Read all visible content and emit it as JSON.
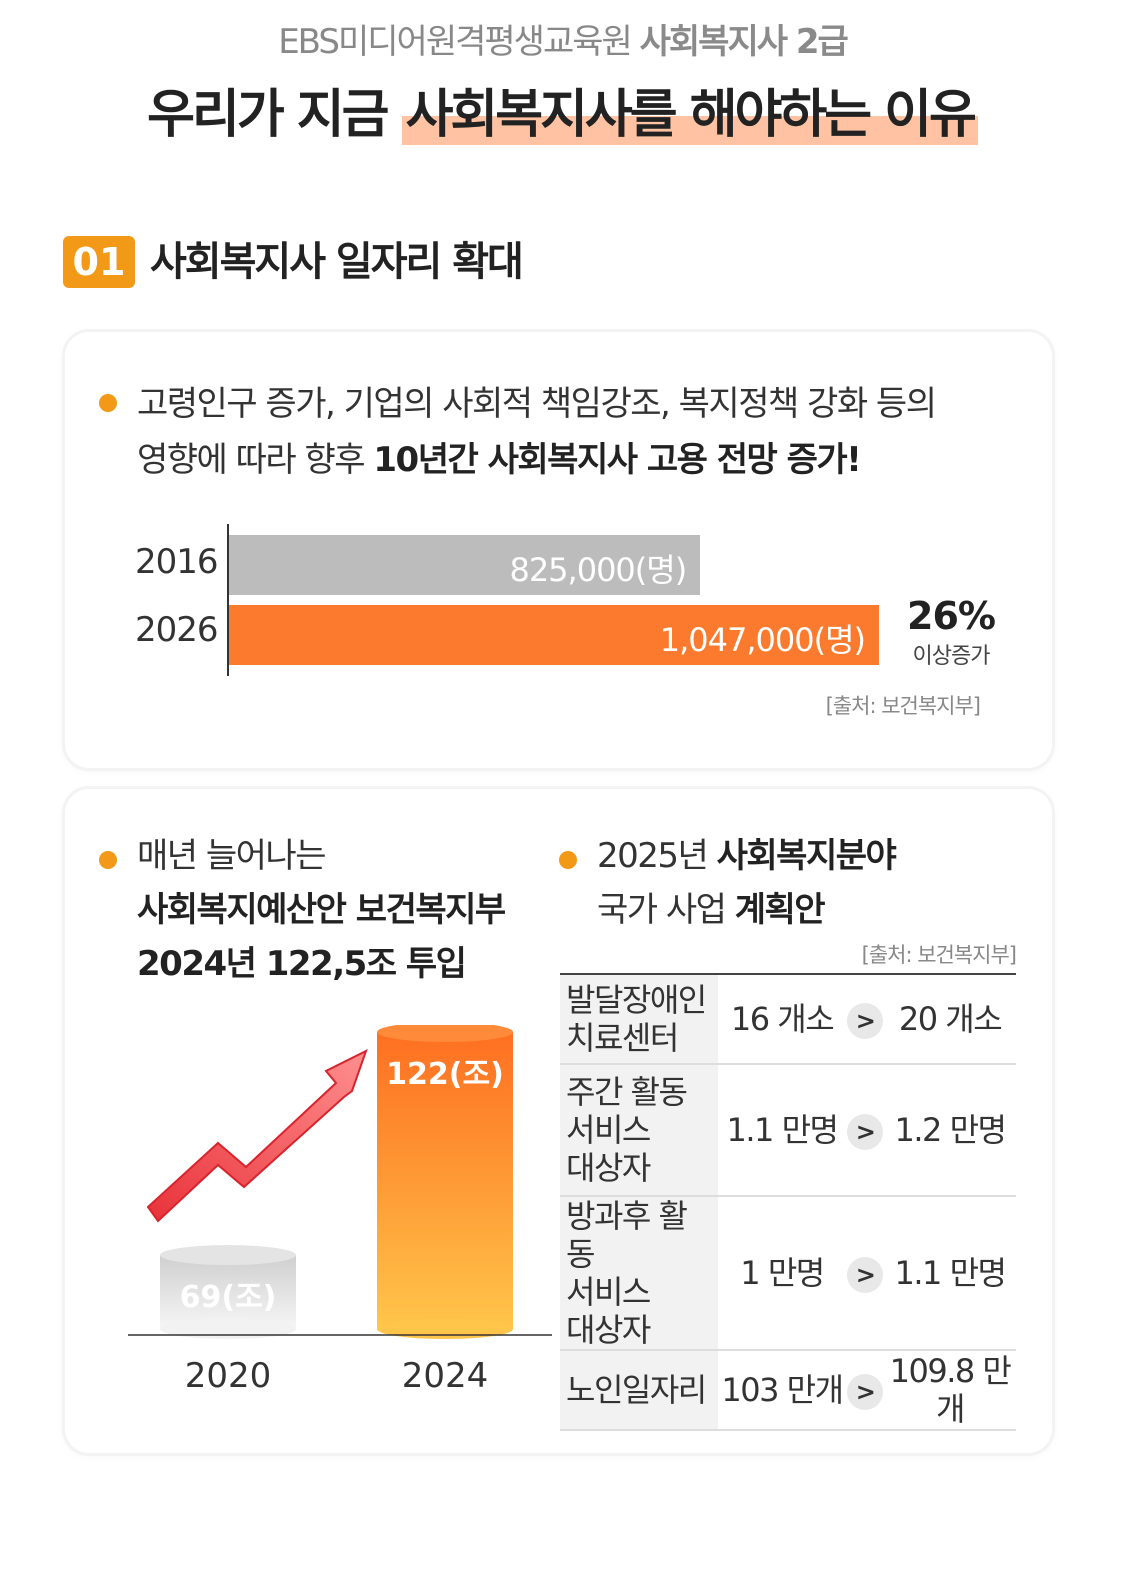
{
  "header": {
    "subtitle_plain": "EBS미디어원격평생교육원 ",
    "subtitle_bold": "사회복지사 2급",
    "title_plain": "우리가 지금 ",
    "title_highlight": "사회복지사를 해야하는 이유"
  },
  "section1": {
    "badge": "01",
    "title": "사회복지사 일자리 확대"
  },
  "card1": {
    "line1": "고령인구 증가, 기업의 사회적 책임강조, 복지정책 강화 등의",
    "line2_plain": "영향에 따라 향후 ",
    "line2_bold": "10년간 사회복지사 고용 전망 증가!",
    "percent": "26%",
    "percent_label": "이상증가",
    "source": "[출처: 보건복지부]"
  },
  "chart_data": [
    {
      "type": "bar",
      "categories": [
        "2016",
        "2026"
      ],
      "values": [
        825000,
        1047000
      ],
      "labels": [
        "825,000(명)",
        "1,047,000(명)"
      ],
      "colors": [
        "#bcbcbc",
        "#fb7a2d"
      ]
    },
    {
      "type": "bar",
      "categories": [
        "2020",
        "2024"
      ],
      "values": [
        69,
        122
      ],
      "labels": [
        "69(조)",
        "122(조)"
      ]
    }
  ],
  "card2": {
    "left_line1": "매년 늘어나는",
    "left_line2": "사회복지예산안 보건복지부",
    "left_line3": "2024년 122,5조 투입",
    "right_line1_plain": "2025년 ",
    "right_line1_bold": "사회복지분야",
    "right_line2_plain": "국가 사업 ",
    "right_line2_bold": "계획안",
    "source": "[출처: 보건복지부]",
    "table": [
      {
        "label": "발달장애인\n치료센터",
        "from": "16 개소",
        "to": "20 개소"
      },
      {
        "label": "주간 활동\n서비스\n대상자",
        "from": "1.1 만명",
        "to": "1.2 만명"
      },
      {
        "label": "방과후 활동\n서비스\n대상자",
        "from": "1 만명",
        "to": "1.1 만명"
      },
      {
        "label": "노인일자리",
        "from": "103 만개",
        "to": "109.8 만개"
      }
    ],
    "arrow": ">"
  }
}
